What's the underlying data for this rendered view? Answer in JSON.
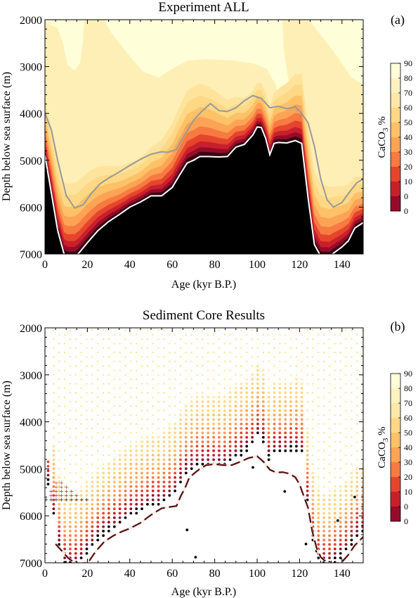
{
  "panel_a": {
    "title": "Experiment ALL",
    "label": "(a)"
  },
  "panel_b": {
    "title": "Sediment Core Results",
    "label": "(b)"
  },
  "colorbar": {
    "title_main": "CaCO",
    "title_sub": "3",
    "title_tail": " %",
    "ticks": [
      "90",
      "80",
      "70",
      "60",
      "50",
      "40",
      "30",
      "20",
      "10",
      "0"
    ],
    "colors": [
      "#feffd9",
      "#fff2c1",
      "#fee7a8",
      "#fed885",
      "#fdc168",
      "#fca356",
      "#f77a41",
      "#e6452d",
      "#c8202a",
      "#950b2b"
    ]
  },
  "chart_data": [
    {
      "type": "heatmap",
      "title": "Experiment ALL",
      "xlabel": "Age (kyr B.P.)",
      "ylabel": "Depth below sea surface (m)",
      "xlim": [
        0,
        150
      ],
      "ylim": [
        7000,
        2000
      ],
      "x_ticks": [
        "0",
        "20",
        "40",
        "60",
        "80",
        "100",
        "120",
        "140"
      ],
      "y_ticks": [
        "2000",
        "3000",
        "4000",
        "5000",
        "6000",
        "7000"
      ],
      "z_label": "CaCO3 %",
      "z_range": [
        0,
        90
      ],
      "contour_levels": [
        0,
        10,
        20,
        30,
        40,
        50,
        60,
        70,
        80,
        90
      ],
      "lines": [
        {
          "color": "#999999",
          "x": [
            0,
            3,
            6,
            10,
            14,
            18,
            22,
            26,
            30,
            35,
            40,
            45,
            50,
            55,
            58,
            62,
            66,
            70,
            74,
            78,
            82,
            86,
            90,
            94,
            98,
            102,
            106,
            110,
            114,
            118,
            121,
            124,
            127,
            130,
            133,
            136,
            140,
            144,
            147,
            150
          ],
          "y": [
            4000,
            4350,
            5000,
            5750,
            6020,
            5950,
            5700,
            5500,
            5380,
            5250,
            5110,
            4980,
            4870,
            4820,
            4830,
            4770,
            4450,
            4150,
            3950,
            3790,
            3940,
            3960,
            3880,
            3730,
            3620,
            3680,
            3880,
            3850,
            3900,
            3860,
            4000,
            4200,
            4700,
            5400,
            5850,
            6000,
            5900,
            5650,
            5480,
            5400
          ]
        },
        {
          "color": "#ffffff",
          "x": [
            0,
            3,
            6,
            9,
            11,
            14,
            16,
            20,
            25,
            30,
            35,
            40,
            45,
            50,
            55,
            60,
            63,
            67,
            70,
            73,
            77,
            82,
            86,
            90,
            94,
            98,
            100,
            102,
            104,
            106,
            108,
            110,
            114,
            118,
            121,
            124,
            127,
            130,
            132,
            134,
            137,
            140,
            143,
            146,
            150
          ],
          "y": [
            4900,
            5700,
            6500,
            7000,
            7050,
            7050,
            6980,
            6760,
            6500,
            6310,
            6160,
            6000,
            5890,
            5760,
            5760,
            5580,
            5350,
            5060,
            5000,
            4920,
            4920,
            4930,
            4920,
            4720,
            4660,
            4460,
            4290,
            4300,
            4530,
            4880,
            4640,
            4620,
            4630,
            4580,
            4640,
            5800,
            6800,
            7050,
            7050,
            7050,
            6950,
            6850,
            6720,
            6450,
            6330
          ]
        }
      ]
    },
    {
      "type": "scatter",
      "title": "Sediment Core Results",
      "xlabel": "Age (kyr B.P.)",
      "ylabel": "Depth below sea surface (m)",
      "xlim": [
        0,
        150
      ],
      "ylim": [
        7000,
        2000
      ],
      "x_ticks": [
        "0",
        "20",
        "40",
        "60",
        "80",
        "100",
        "120",
        "140"
      ],
      "y_ticks": [
        "2000",
        "3000",
        "4000",
        "5000",
        "6000",
        "7000"
      ],
      "z_label": "CaCO3 %",
      "z_range": [
        0,
        90
      ],
      "dashed_line": {
        "x": [
          5,
          8,
          11,
          14,
          18,
          21,
          24,
          28,
          32,
          36,
          40,
          45,
          50,
          55,
          59,
          62,
          64,
          66,
          68,
          70,
          73,
          76,
          80,
          84,
          88,
          92,
          96,
          100,
          103,
          106,
          109,
          112,
          115,
          118,
          120,
          122,
          124,
          125,
          126,
          128,
          130,
          133,
          136,
          140,
          143,
          146,
          150
        ],
        "y": [
          6600,
          6750,
          6900,
          7000,
          7020,
          6950,
          6750,
          6550,
          6430,
          6340,
          6270,
          6150,
          5980,
          5840,
          5810,
          5790,
          5580,
          5410,
          5190,
          5110,
          5000,
          4920,
          4900,
          4920,
          4920,
          4850,
          4770,
          4730,
          4850,
          5020,
          5080,
          5070,
          5100,
          5180,
          5330,
          5580,
          5830,
          6080,
          6330,
          6680,
          6880,
          7000,
          7030,
          6980,
          6830,
          6630,
          6450
        ]
      },
      "cross_markers": {
        "label": "+",
        "x_range": [
          0,
          20
        ],
        "depth_range": [
          5200,
          5650
        ]
      }
    }
  ]
}
